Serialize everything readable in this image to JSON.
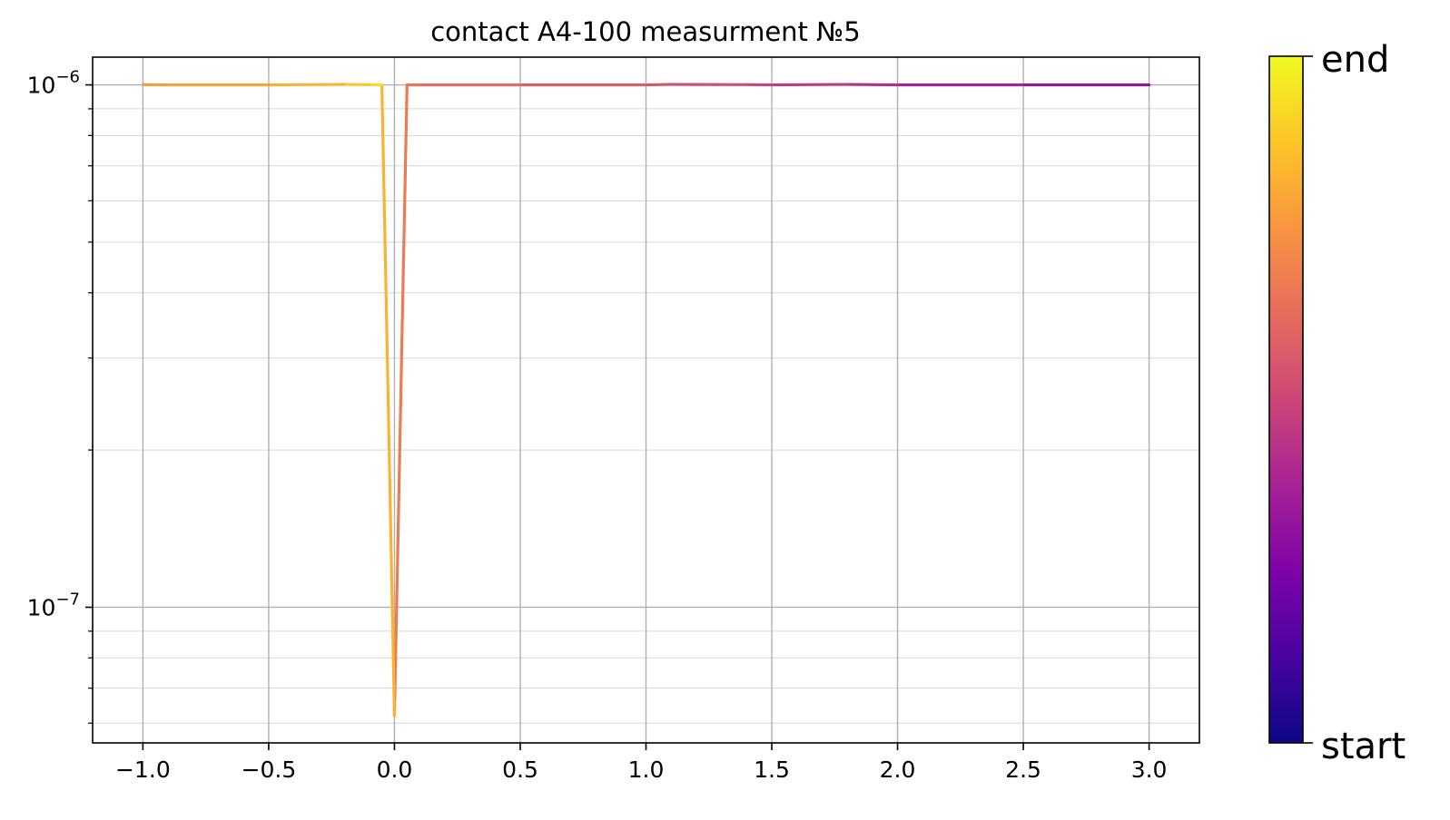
{
  "chart_data": {
    "type": "line",
    "title": "contact A4-100 measurment №5",
    "xlabel": "",
    "ylabel": "",
    "yscale": "log",
    "xlim": [
      -1.2,
      3.2
    ],
    "ylim": [
      5.5e-08,
      1.13e-06
    ],
    "grid": true,
    "x_ticks": [
      -1.0,
      -0.5,
      0.0,
      0.5,
      1.0,
      1.5,
      2.0,
      2.5,
      3.0
    ],
    "x_tick_labels": [
      "−1.0",
      "−0.5",
      "0.0",
      "0.5",
      "1.0",
      "1.5",
      "2.0",
      "2.5",
      "3.0"
    ],
    "y_ticks": [
      {
        "value": 1e-06,
        "base": "10",
        "exp": "−6"
      },
      {
        "value": 1e-07,
        "base": "10",
        "exp": "−7"
      }
    ],
    "colormap": "plasma",
    "colorbar": {
      "top_label": "end",
      "bottom_label": "start"
    },
    "series": [
      {
        "x": [
          3.0,
          2.5,
          2.0,
          1.8,
          1.5,
          1.4,
          1.1,
          1.0,
          0.5,
          0.1,
          0.05,
          0.0
        ],
        "y": [
          1e-06,
          1e-06,
          1e-06,
          1.002e-06,
          1e-06,
          1.001e-06,
          1.002e-06,
          1e-06,
          1e-06,
          1e-06,
          1e-06,
          6.2e-08
        ],
        "color_position": [
          0.3,
          0.35,
          0.4,
          0.43,
          0.48,
          0.5,
          0.54,
          0.56,
          0.6,
          0.64,
          0.66,
          0.68
        ]
      },
      {
        "x": [
          0.0,
          -0.05,
          -0.1,
          -0.2,
          -0.5,
          -0.9,
          -1.0
        ],
        "y": [
          6.2e-08,
          1e-06,
          1.001e-06,
          1.002e-06,
          1e-06,
          1e-06,
          1.001e-06
        ],
        "color_position": [
          0.7,
          0.95,
          0.9,
          0.85,
          0.8,
          0.78,
          0.76
        ]
      }
    ]
  }
}
